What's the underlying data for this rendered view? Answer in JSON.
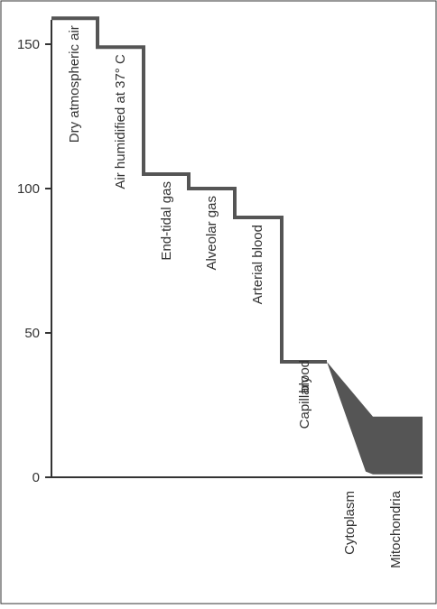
{
  "chart_data": {
    "type": "line",
    "title": "",
    "xlabel": "",
    "ylabel": "",
    "ylim": [
      0,
      160
    ],
    "yticks": [
      0,
      50,
      100,
      150
    ],
    "grid": false,
    "colors": {
      "line": "#555555",
      "fill": "#555555",
      "axis": "#333333",
      "border": "#333333"
    },
    "stages": [
      {
        "label": "Dry atmospheric air",
        "value": 159
      },
      {
        "label": "Air humidified at 37° C",
        "value": 149
      },
      {
        "label": "End-tidal gas",
        "value": 105
      },
      {
        "label": "Alveolar gas",
        "value": 100
      },
      {
        "label": "Arterial blood",
        "value": 90
      },
      {
        "label": "Capillary blood",
        "value": 40
      }
    ],
    "shaded_range": [
      {
        "label": "Cytoplasm",
        "low": 2,
        "high": 40
      },
      {
        "label": "Mitochondria",
        "low": 1,
        "high": 21
      }
    ]
  }
}
